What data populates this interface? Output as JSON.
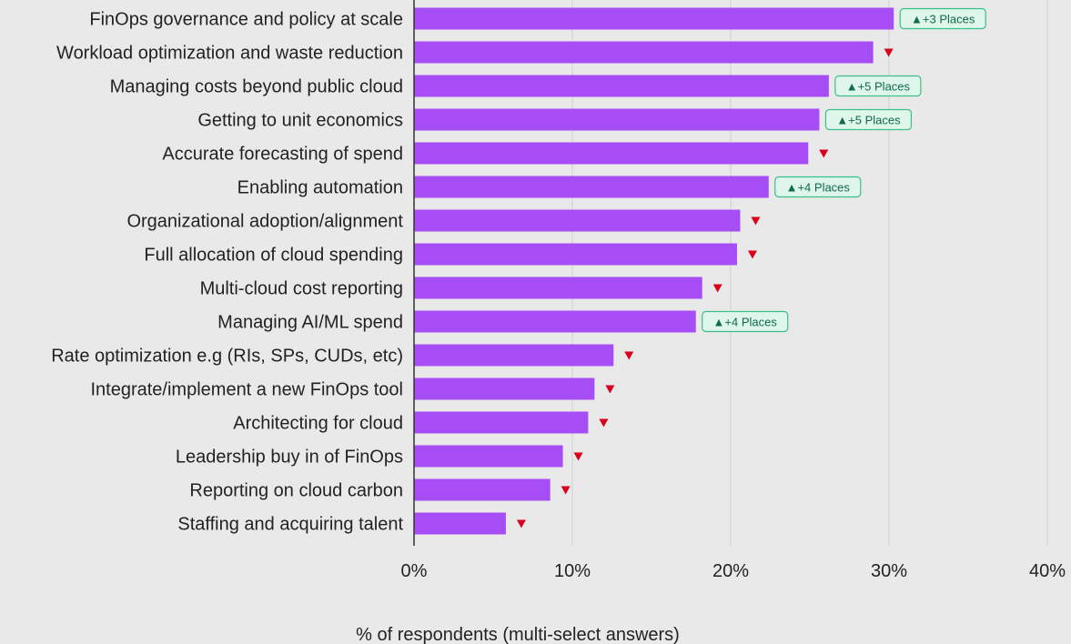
{
  "chart_data": {
    "type": "bar",
    "orientation": "horizontal",
    "categories": [
      "FinOps governance and policy at scale",
      "Workload optimization and waste reduction",
      "Managing costs beyond public cloud",
      "Getting to unit economics",
      "Accurate forecasting of spend",
      "Enabling automation",
      "Organizational adoption/alignment",
      "Full allocation of cloud spending",
      "Multi-cloud cost reporting",
      "Managing AI/ML spend",
      "Rate optimization e.g (RIs, SPs, CUDs, etc)",
      "Integrate/implement a new FinOps tool",
      "Architecting for cloud",
      "Leadership buy in of FinOps",
      "Reporting on cloud carbon",
      "Staffing and acquiring talent"
    ],
    "values": [
      30.3,
      29.0,
      26.2,
      25.6,
      24.9,
      22.4,
      20.6,
      20.4,
      18.2,
      17.8,
      12.6,
      11.4,
      11.0,
      9.4,
      8.6,
      5.8
    ],
    "rank_change": [
      "▲+3 Places",
      "down",
      "▲+5 Places",
      "▲+5 Places",
      "down",
      "▲+4 Places",
      "down",
      "down",
      "down",
      "▲+4 Places",
      "down",
      "down",
      "down",
      "down",
      "down",
      "down"
    ],
    "x_ticks": [
      "0%",
      "10%",
      "20%",
      "30%",
      "40%"
    ],
    "xlim": [
      0,
      40
    ],
    "xlabel": "% of respondents (multi-select answers)",
    "ylabel": "",
    "grid": true,
    "colors": {
      "bar": "#a64df5",
      "background": "#e9e9e9",
      "grid": "#cfcfcf",
      "axis": "#333333",
      "down_marker": "#d9001b",
      "badge_fill": "#dff6ea",
      "badge_border": "#3cbf88",
      "badge_text": "#0f6b4a"
    }
  }
}
